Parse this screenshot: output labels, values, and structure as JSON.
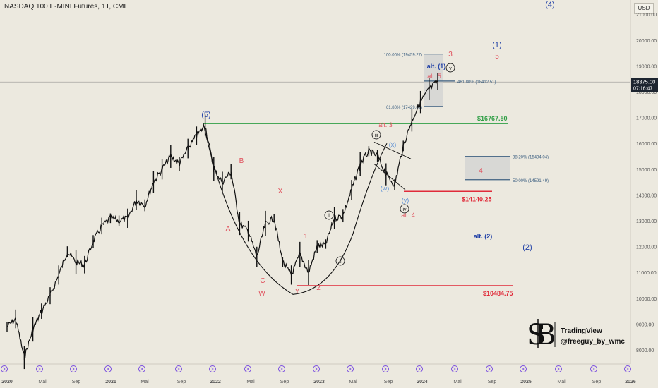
{
  "header": {
    "title": "NASDAQ 100 E-MINI Futures, 1T, CME"
  },
  "currency_button": "USD",
  "price_axis": {
    "ticks": [
      "21000.00",
      "20000.00",
      "19000.00",
      "18000.00",
      "17000.00",
      "16000.00",
      "15000.00",
      "14000.00",
      "13000.00",
      "12000.00",
      "11000.00",
      "10000.00",
      "9000.00",
      "8000.00"
    ],
    "last_price": "18375.00",
    "countdown": "07:16:47"
  },
  "time_axis": {
    "ticks": [
      "2020",
      "Mai",
      "Sep",
      "2021",
      "Mai",
      "Sep",
      "2022",
      "Mai",
      "Sep",
      "2023",
      "Mai",
      "Sep",
      "2024",
      "Mai",
      "Sep",
      "2025",
      "Mai",
      "Sep",
      "2026"
    ]
  },
  "levels": {
    "green": "$16767.50",
    "red_mid": "$14140.25",
    "red_low": "$10484.75"
  },
  "fib_labels": {
    "top": "100.00% (19459.27)",
    "right": "461.80% (18412.51)",
    "left": "61.80% (17429.02)",
    "box_top": "38.20% (15494.04)",
    "box_bottom": "50.00% (14591.49)"
  },
  "wave_labels": {
    "blue_5": "(5)",
    "blue_4": "(4)",
    "blue_1": "(1)",
    "alt_1": "alt. (1)",
    "alt_2": "alt. (2)",
    "blue_2": "(2)",
    "red_3": "3",
    "red_5": "5",
    "alt_5": "alt. 5",
    "alt_3": "alt. 3",
    "alt_4": "alt. 4",
    "red_4": "4",
    "A": "A",
    "B": "B",
    "C": "C",
    "X": "X",
    "W": "W",
    "Y": "Y",
    "red_1": "1",
    "red_2": "2",
    "c_i": "i",
    "c_ii": "ii",
    "c_iii": "iii",
    "c_iv": "iv",
    "c_v": "v",
    "x_lbl": "(x)",
    "w_lbl": "(w)",
    "y_lbl": "(y)"
  },
  "watermark": {
    "line1": "TradingView",
    "line2": "@freeguy_by_wmc"
  },
  "colors": {
    "background": "#ece9df",
    "candles": "#111111",
    "green_line": "#2e9e44",
    "red_line": "#e02b3a",
    "blue_text": "#1f3fa6",
    "red_text": "#e0505c",
    "fib": "#3c5f80",
    "fib_box": "#c9cbcc"
  },
  "chart_data": {
    "type": "candlestick",
    "title": "NASDAQ 100 E-MINI Futures, 1T, CME",
    "ylim": [
      7600,
      21800
    ],
    "x": [
      "2020-01",
      "2020-02",
      "2020-03",
      "2020-04",
      "2020-05",
      "2020-06",
      "2020-07",
      "2020-08",
      "2020-09",
      "2020-10",
      "2020-11",
      "2020-12",
      "2021-01",
      "2021-02",
      "2021-03",
      "2021-04",
      "2021-05",
      "2021-06",
      "2021-07",
      "2021-08",
      "2021-09",
      "2021-10",
      "2021-11",
      "2021-12",
      "2022-01",
      "2022-02",
      "2022-03",
      "2022-04",
      "2022-05",
      "2022-06",
      "2022-07",
      "2022-08",
      "2022-09",
      "2022-10",
      "2022-11",
      "2022-12",
      "2023-01",
      "2023-02",
      "2023-03",
      "2023-04",
      "2023-05",
      "2023-06",
      "2023-07",
      "2023-08",
      "2023-09",
      "2023-10",
      "2023-11",
      "2023-12",
      "2024-01",
      "2024-02",
      "2024-03"
    ],
    "close": [
      8900,
      9200,
      7700,
      8800,
      9500,
      10100,
      10900,
      11800,
      11400,
      11300,
      12200,
      12800,
      13100,
      13000,
      13100,
      13800,
      13600,
      14500,
      15000,
      15500,
      15200,
      15800,
      16300,
      16700,
      15000,
      14500,
      14900,
      12900,
      12600,
      11600,
      12900,
      13100,
      11400,
      10900,
      11700,
      11000,
      12000,
      12100,
      13100,
      13200,
      14200,
      15200,
      15700,
      15500,
      14800,
      14400,
      15900,
      16900,
      17600,
      18100,
      18400
    ],
    "levels": [
      16767.5,
      14140.25,
      10484.75
    ],
    "fib": [
      19459.27,
      18412.51,
      17429.02,
      15494.04,
      14591.49
    ],
    "grid": false
  }
}
